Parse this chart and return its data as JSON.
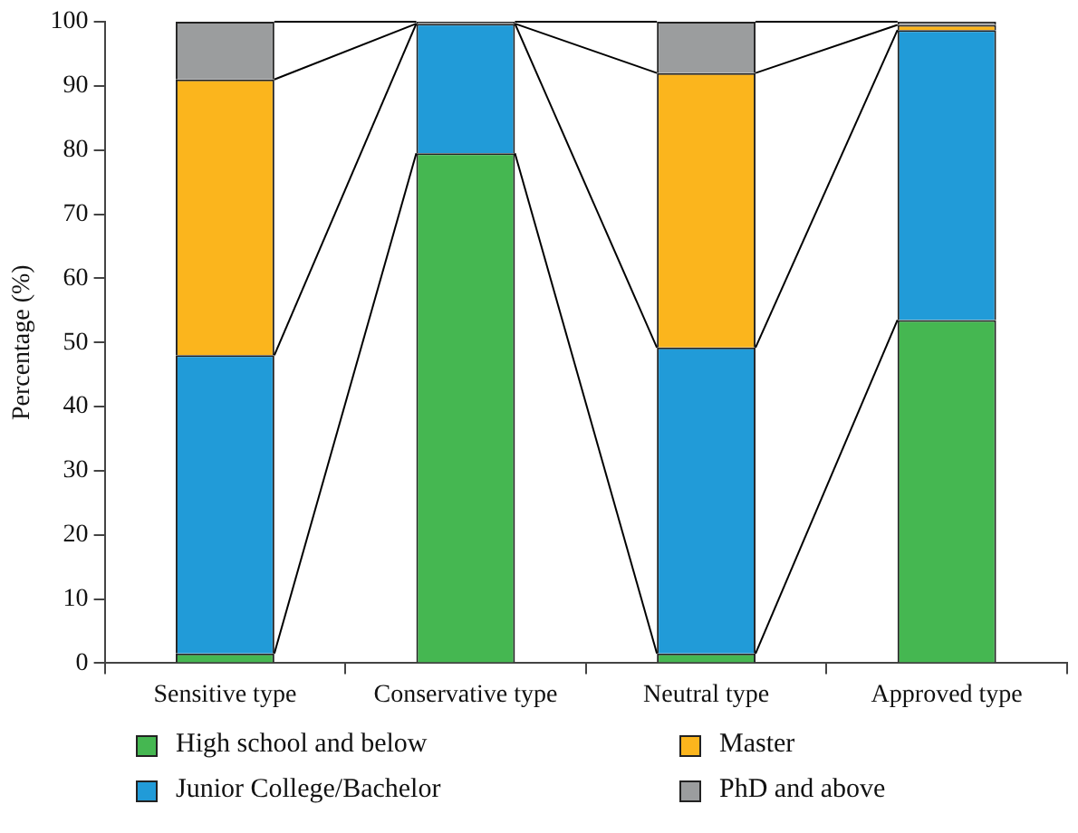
{
  "chart_data": {
    "type": "bar",
    "stacked": true,
    "ylabel": "Percentage (%)",
    "categories": [
      "Sensitive type",
      "Conservative type",
      "Neutral type",
      "Approved type"
    ],
    "series": [
      {
        "name": "High school and below",
        "color": "#45b751",
        "values": [
          1.5,
          79.5,
          1.5,
          53.5
        ]
      },
      {
        "name": "Junior College/Bachelor",
        "color": "#219bd8",
        "values": [
          46.5,
          20.2,
          47.7,
          45.2
        ]
      },
      {
        "name": "Master",
        "color": "#fbb51d",
        "values": [
          43,
          0,
          42.8,
          0.8
        ]
      },
      {
        "name": "PhD and above",
        "color": "#9b9d9e",
        "values": [
          9,
          0.3,
          8,
          0.5
        ]
      }
    ],
    "ylim": [
      0,
      100
    ],
    "yticks": [
      0,
      10,
      20,
      30,
      40,
      50,
      60,
      70,
      80,
      90,
      100
    ],
    "grid": false,
    "legend": "bottom"
  }
}
